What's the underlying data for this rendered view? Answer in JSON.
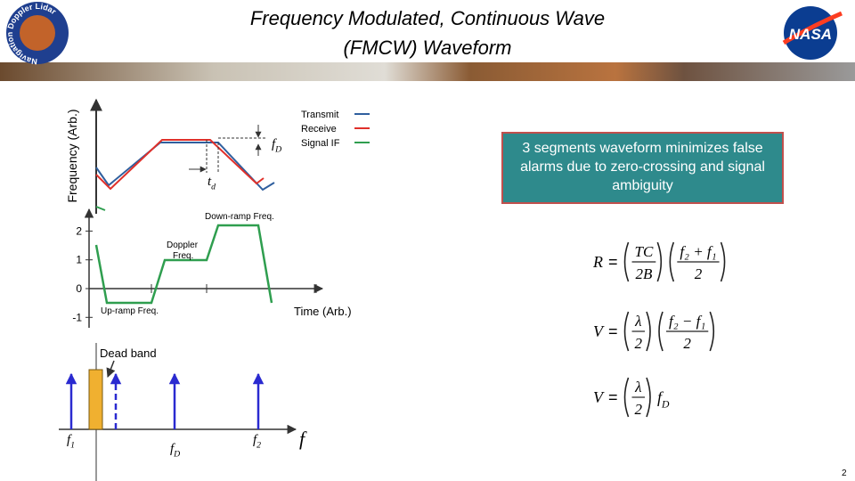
{
  "header": {
    "title_line1": "Frequency Modulated, Continuous Wave",
    "title_line2": "(FMCW) Waveform",
    "logo_left_text": "Navigation Doppler Lidar",
    "logo_right_text": "NASA"
  },
  "upper_plot": {
    "y_label": "Frequency (Arb.)",
    "legend": [
      "Transmit",
      "Receive",
      "Signal IF"
    ],
    "doppler_label": {
      "main": "f",
      "sub": "D"
    },
    "delay_label": {
      "main": "t",
      "sub": "d"
    }
  },
  "lower_plot": {
    "yticks": [
      2,
      1,
      0,
      -1
    ],
    "x_label": "Time (Arb.)",
    "annotations": [
      "Down-ramp Freq.",
      "Doppler Freq.",
      "Up-ramp Freq."
    ]
  },
  "spectrum": {
    "dead_band": "Dead band",
    "f1": {
      "main": "f",
      "sub": "1"
    },
    "fD": {
      "main": "f",
      "sub": "D"
    },
    "f2": {
      "main": "f",
      "sub": "2"
    },
    "axis_label": "f"
  },
  "callout": "3 segments waveform minimizes false alarms due to zero-crossing and signal ambiguity",
  "equations": [
    {
      "lhs": "R",
      "equals": "=",
      "factors": [
        {
          "num": "TC",
          "den": "2B"
        },
        {
          "num": "f₂ + f₁",
          "den": "2"
        }
      ]
    },
    {
      "lhs": "V",
      "equals": "=",
      "factors": [
        {
          "num": "λ",
          "den": "2"
        },
        {
          "num": "f₂ − f₁",
          "den": "2"
        }
      ]
    },
    {
      "lhs": "V",
      "equals": "=",
      "factors": [
        {
          "num": "λ",
          "den": "2"
        }
      ],
      "tail": {
        "main": "f",
        "sub": "D"
      }
    }
  ],
  "slide_number": "2"
}
